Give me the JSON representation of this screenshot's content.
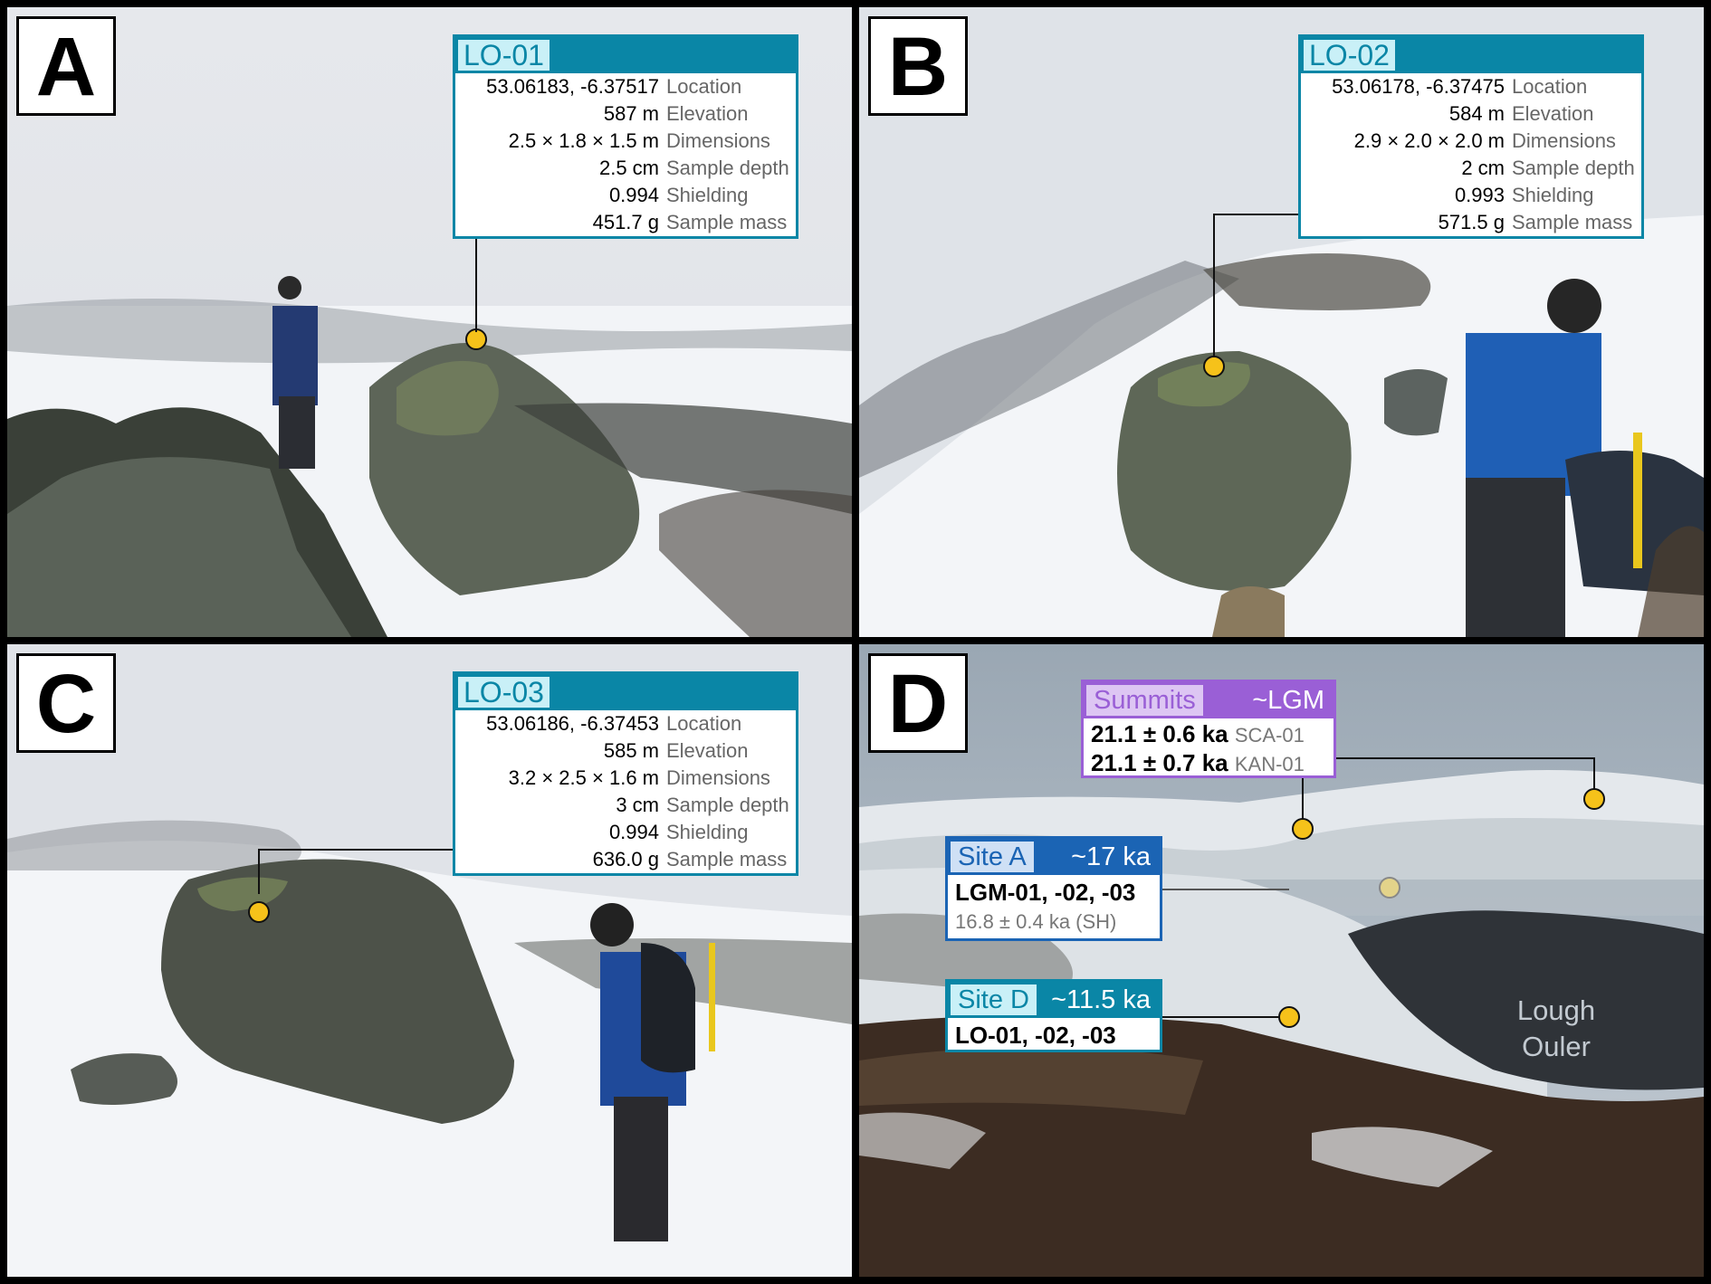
{
  "panels": {
    "A": {
      "letter": "A",
      "sample": {
        "id": "LO-01",
        "rows": [
          {
            "value": "53.06183, -6.37517",
            "label": "Location"
          },
          {
            "value": "587 m",
            "label": "Elevation"
          },
          {
            "value": "2.5 × 1.8 × 1.5 m",
            "label": "Dimensions"
          },
          {
            "value": "2.5 cm",
            "label": "Sample depth"
          },
          {
            "value": "0.994",
            "label": "Shielding"
          },
          {
            "value": "451.7 g",
            "label": "Sample mass"
          }
        ]
      }
    },
    "B": {
      "letter": "B",
      "sample": {
        "id": "LO-02",
        "rows": [
          {
            "value": "53.06178, -6.37475",
            "label": "Location"
          },
          {
            "value": "584 m",
            "label": "Elevation"
          },
          {
            "value": "2.9 × 2.0 × 2.0 m",
            "label": "Dimensions"
          },
          {
            "value": "2 cm",
            "label": "Sample depth"
          },
          {
            "value": "0.993",
            "label": "Shielding"
          },
          {
            "value": "571.5 g",
            "label": "Sample mass"
          }
        ]
      }
    },
    "C": {
      "letter": "C",
      "sample": {
        "id": "LO-03",
        "rows": [
          {
            "value": "53.06186, -6.37453",
            "label": "Location"
          },
          {
            "value": "585 m",
            "label": "Elevation"
          },
          {
            "value": "3.2 × 2.5 × 1.6 m",
            "label": "Dimensions"
          },
          {
            "value": "3 cm",
            "label": "Sample depth"
          },
          {
            "value": "0.994",
            "label": "Shielding"
          },
          {
            "value": "636.0 g",
            "label": "Sample mass"
          }
        ]
      }
    },
    "D": {
      "letter": "D",
      "summits": {
        "title": "Summits",
        "age": "~LGM",
        "rows": [
          {
            "value": "21.1 ± 0.6 ka",
            "id": "SCA-01"
          },
          {
            "value": "21.1 ± 0.7 ka",
            "id": "KAN-01"
          }
        ]
      },
      "site_a": {
        "title": "Site A",
        "age": "~17 ka",
        "samples": "LGM-01, -02, -03",
        "note": "16.8 ± 0.4 ka (SH)"
      },
      "site_d": {
        "title": "Site D",
        "age": "~11.5 ka",
        "samples": "LO-01, -02, -03"
      },
      "lake": {
        "line1": "Lough",
        "line2": "Ouler"
      }
    }
  },
  "colors": {
    "teal": "#0a86a6",
    "teal_light": "#c9f0f7",
    "purple": "#9a5fd6",
    "purple_light": "#ddc6f3",
    "blue": "#1b64b4",
    "blue_light": "#cfe0f5",
    "marker": "#f6c21a"
  }
}
